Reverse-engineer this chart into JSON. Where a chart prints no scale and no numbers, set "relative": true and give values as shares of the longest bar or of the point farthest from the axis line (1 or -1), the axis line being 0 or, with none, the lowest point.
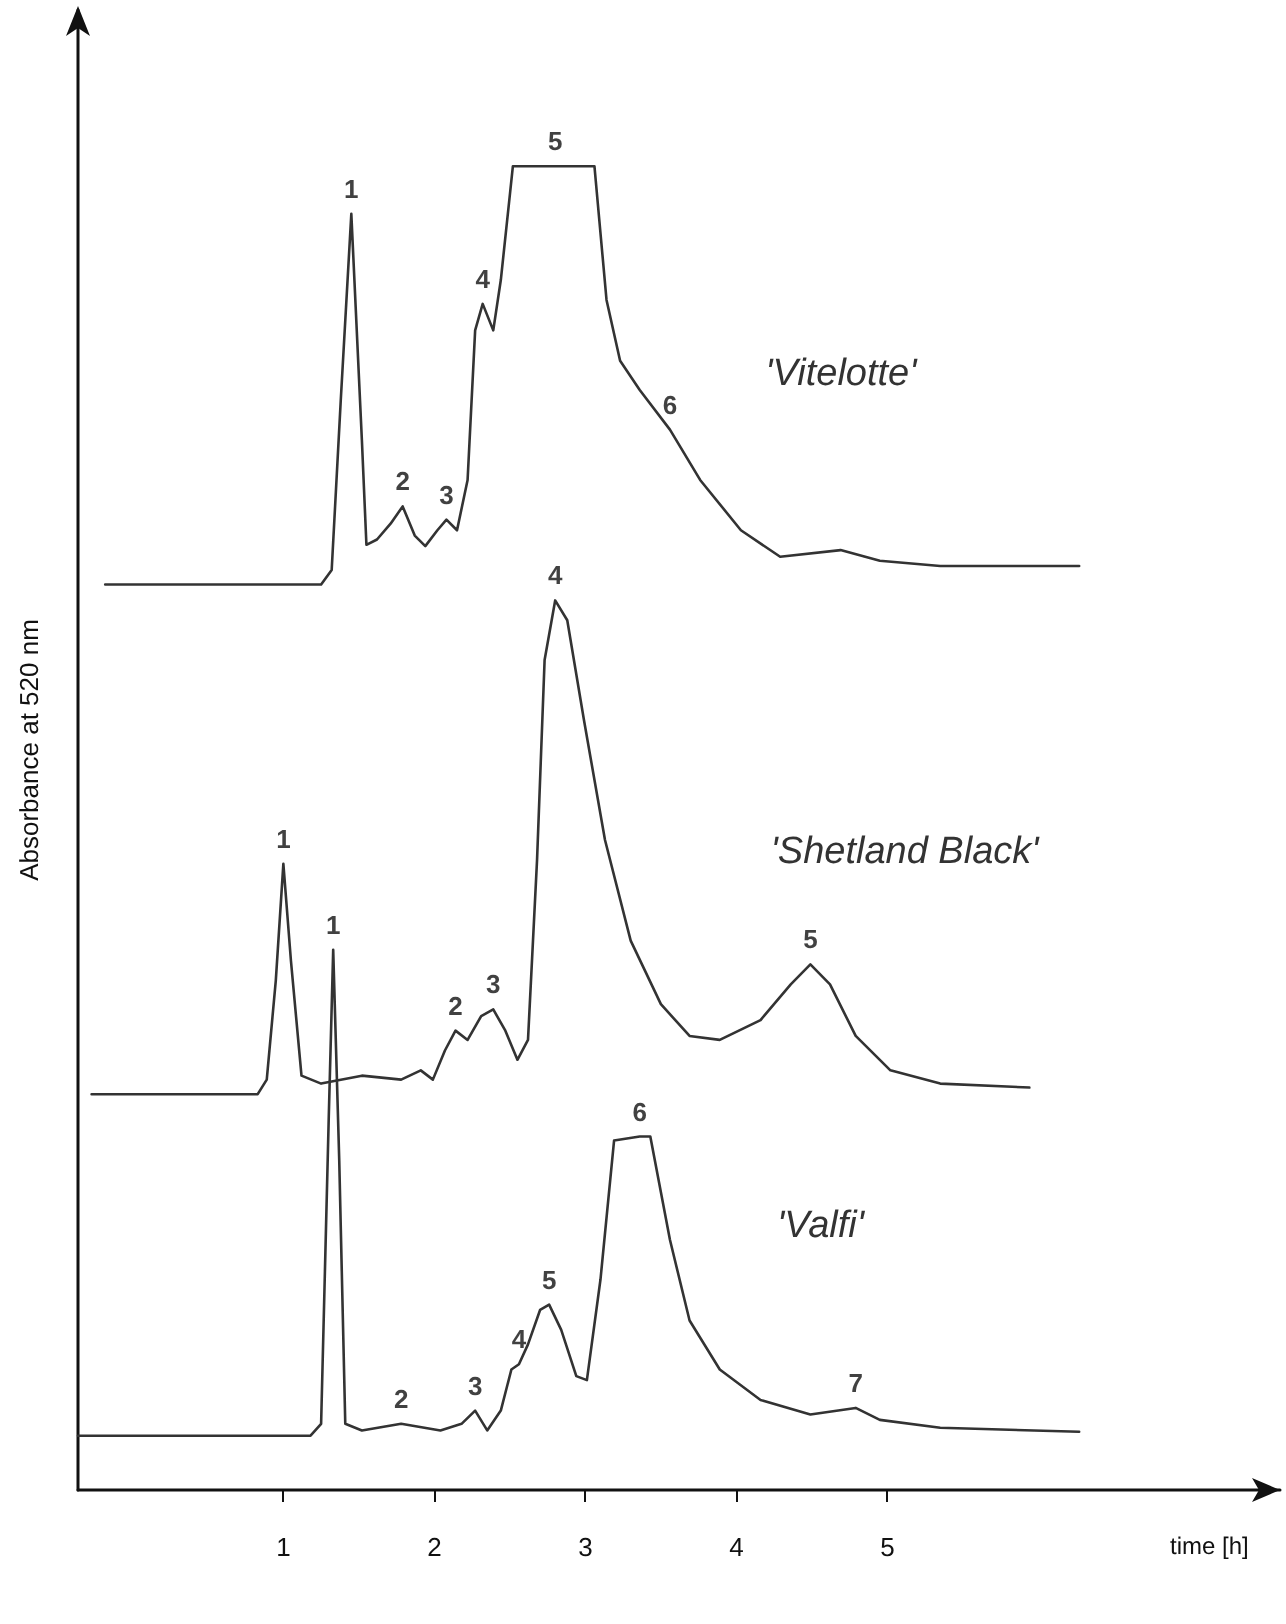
{
  "chart_data": {
    "type": "line",
    "relative": true,
    "xlabel": "time [h]",
    "ylabel": "Absorbance at 520 nm",
    "xlim": [
      -0.36,
      7.6
    ],
    "xticks": [
      1,
      2,
      3,
      4,
      5
    ],
    "grid": false,
    "legend": false,
    "marker": "none",
    "line_style": "solid",
    "series": [
      {
        "name": "'Vitelotte'",
        "color": "#333333",
        "x": [
          -0.18,
          1.25,
          1.32,
          1.38,
          1.45,
          1.52,
          1.55,
          1.62,
          1.71,
          1.79,
          1.87,
          1.94,
          2.02,
          2.08,
          2.15,
          2.22,
          2.27,
          2.32,
          2.39,
          2.44,
          2.52,
          3.06,
          3.14,
          3.23,
          3.36,
          3.56,
          3.76,
          4.03,
          4.29,
          4.69,
          4.95,
          5.35,
          6.27
        ],
        "values": [
          0.684,
          0.684,
          0.695,
          0.823,
          0.964,
          0.793,
          0.714,
          0.718,
          0.73,
          0.743,
          0.721,
          0.713,
          0.725,
          0.733,
          0.725,
          0.763,
          0.876,
          0.896,
          0.876,
          0.914,
          1,
          1,
          0.899,
          0.853,
          0.831,
          0.801,
          0.763,
          0.725,
          0.705,
          0.71,
          0.702,
          0.698,
          0.698
        ]
      },
      {
        "name": "'Shetland Black'",
        "color": "#333333",
        "x": [
          -0.27,
          0.83,
          0.89,
          0.95,
          1.0,
          1.05,
          1.12,
          1.25,
          1.52,
          1.78,
          1.91,
          1.99,
          2.07,
          2.14,
          2.22,
          2.31,
          2.39,
          2.47,
          2.55,
          2.62,
          2.68,
          2.73,
          2.8,
          2.88,
          2.99,
          3.13,
          3.3,
          3.5,
          3.69,
          3.89,
          4.16,
          4.36,
          4.49,
          4.62,
          4.79,
          5.02,
          5.35,
          5.94
        ],
        "values": [
          0.299,
          0.299,
          0.31,
          0.385,
          0.473,
          0.4,
          0.313,
          0.307,
          0.313,
          0.31,
          0.317,
          0.31,
          0.332,
          0.347,
          0.34,
          0.358,
          0.363,
          0.347,
          0.325,
          0.34,
          0.476,
          0.627,
          0.672,
          0.657,
          0.582,
          0.491,
          0.415,
          0.367,
          0.343,
          0.34,
          0.355,
          0.382,
          0.397,
          0.382,
          0.343,
          0.317,
          0.307,
          0.304
        ]
      },
      {
        "name": "'Valfi'",
        "color": "#333333",
        "x": [
          -0.36,
          1.18,
          1.25,
          1.3,
          1.33,
          1.37,
          1.41,
          1.52,
          1.78,
          2.04,
          2.18,
          2.27,
          2.35,
          2.44,
          2.51,
          2.56,
          2.62,
          2.7,
          2.76,
          2.84,
          2.94,
          3.01,
          3.1,
          3.19,
          3.36,
          3.43,
          3.56,
          3.69,
          3.89,
          4.16,
          4.49,
          4.79,
          4.95,
          5.35,
          6.27
        ],
        "values": [
          0.041,
          0.041,
          0.05,
          0.279,
          0.408,
          0.249,
          0.05,
          0.045,
          0.05,
          0.045,
          0.05,
          0.06,
          0.045,
          0.06,
          0.091,
          0.095,
          0.11,
          0.136,
          0.14,
          0.121,
          0.086,
          0.083,
          0.159,
          0.264,
          0.267,
          0.267,
          0.189,
          0.128,
          0.091,
          0.068,
          0.057,
          0.062,
          0.053,
          0.047,
          0.044
        ]
      }
    ],
    "annotations": [
      {
        "text": "1",
        "x": 1.45,
        "y": 0.964
      },
      {
        "text": "2",
        "x": 1.79,
        "y": 0.743
      },
      {
        "text": "3",
        "x": 2.08,
        "y": 0.733
      },
      {
        "text": "4",
        "x": 2.32,
        "y": 0.896
      },
      {
        "text": "5",
        "x": 2.8,
        "y": 1
      },
      {
        "text": "6",
        "x": 3.56,
        "y": 0.801
      },
      {
        "text": "1",
        "x": 1.0,
        "y": 0.473
      },
      {
        "text": "2",
        "x": 2.14,
        "y": 0.347
      },
      {
        "text": "3",
        "x": 2.39,
        "y": 0.363
      },
      {
        "text": "4",
        "x": 2.8,
        "y": 0.672
      },
      {
        "text": "5",
        "x": 4.49,
        "y": 0.397
      },
      {
        "text": "1",
        "x": 1.33,
        "y": 0.408
      },
      {
        "text": "2",
        "x": 1.78,
        "y": 0.05
      },
      {
        "text": "3",
        "x": 2.27,
        "y": 0.06
      },
      {
        "text": "4",
        "x": 2.56,
        "y": 0.095
      },
      {
        "text": "5",
        "x": 2.76,
        "y": 0.14
      },
      {
        "text": "6",
        "x": 3.36,
        "y": 0.267
      },
      {
        "text": "7",
        "x": 4.79,
        "y": 0.062
      }
    ]
  }
}
